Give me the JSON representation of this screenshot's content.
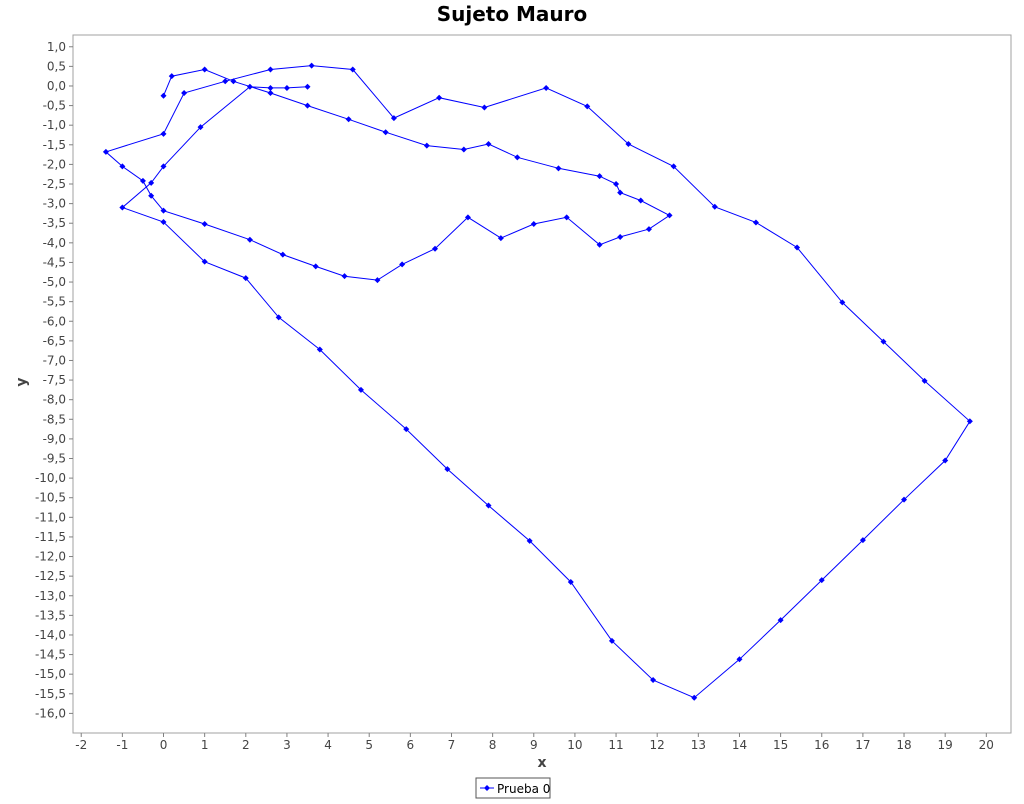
{
  "chart_data": {
    "type": "line",
    "title": "Sujeto Mauro",
    "xlabel": "x",
    "ylabel": "y",
    "xlim": [
      -2.2,
      20.6
    ],
    "ylim": [
      -16.5,
      1.3
    ],
    "x_ticks": [
      -2,
      -1,
      0,
      1,
      2,
      3,
      4,
      5,
      6,
      7,
      8,
      9,
      10,
      11,
      12,
      13,
      14,
      15,
      16,
      17,
      18,
      19,
      20
    ],
    "x_tick_labels": [
      "-2",
      "-1",
      "0",
      "1",
      "2",
      "3",
      "4",
      "5",
      "6",
      "7",
      "8",
      "9",
      "10",
      "11",
      "12",
      "13",
      "14",
      "15",
      "16",
      "17",
      "18",
      "19",
      "20"
    ],
    "y_ticks": [
      1.0,
      0.5,
      0.0,
      -0.5,
      -1.0,
      -1.5,
      -2.0,
      -2.5,
      -3.0,
      -3.5,
      -4.0,
      -4.5,
      -5.0,
      -5.5,
      -6.0,
      -6.5,
      -7.0,
      -7.5,
      -8.0,
      -8.5,
      -9.0,
      -9.5,
      -10.0,
      -10.5,
      -11.0,
      -11.5,
      -12.0,
      -12.5,
      -13.0,
      -13.5,
      -14.0,
      -14.5,
      -15.0,
      -15.5,
      -16.0
    ],
    "y_tick_labels": [
      "1,0",
      "0,5",
      "0,0",
      "-0,5",
      "-1,0",
      "-1,5",
      "-2,0",
      "-2,5",
      "-3,0",
      "-3,5",
      "-4,0",
      "-4,5",
      "-5,0",
      "-5,5",
      "-6,0",
      "-6,5",
      "-7,0",
      "-7,5",
      "-8,0",
      "-8,5",
      "-9,0",
      "-9,5",
      "-10,0",
      "-10,5",
      "-11,0",
      "-11,5",
      "-12,0",
      "-12,5",
      "-13,0",
      "-13,5",
      "-14,0",
      "-14,5",
      "-15,0",
      "-15,5",
      "-16,0"
    ],
    "grid": false,
    "legend_position": "bottom-center",
    "color": "#0000ff",
    "series": [
      {
        "name": "Prueba 0",
        "x": [
          0.0,
          0.2,
          1.0,
          1.7,
          2.6,
          3.5,
          4.5,
          5.4,
          6.4,
          7.3,
          7.9,
          8.6,
          9.6,
          10.6,
          11.0,
          11.1,
          11.6,
          12.3,
          11.8,
          11.1,
          10.6,
          9.8,
          9.0,
          8.2,
          7.4,
          6.6,
          5.8,
          5.2,
          4.4,
          3.7,
          2.9,
          2.1,
          1.0,
          0.0,
          -0.3,
          -0.5,
          -1.0,
          -1.4,
          0.0,
          0.5,
          1.5,
          2.6,
          3.6,
          4.6,
          5.6,
          6.7,
          7.8,
          9.3,
          10.3,
          11.3,
          12.4,
          13.4,
          14.4,
          15.4,
          16.5,
          17.5,
          18.5,
          19.6,
          19.0,
          18.0,
          17.0,
          16.0,
          15.0,
          14.0,
          12.9,
          11.9,
          10.9,
          9.9,
          8.9,
          7.9,
          6.9,
          5.9,
          4.8,
          3.8,
          2.8,
          2.0,
          1.0,
          0.0,
          -1.0,
          -0.3,
          0.0,
          0.9,
          2.1,
          2.6,
          3.0,
          3.5
        ],
        "y": [
          -0.25,
          0.25,
          0.42,
          0.12,
          -0.18,
          -0.5,
          -0.85,
          -1.18,
          -1.52,
          -1.62,
          -1.48,
          -1.82,
          -2.1,
          -2.3,
          -2.5,
          -2.72,
          -2.92,
          -3.3,
          -3.65,
          -3.85,
          -4.05,
          -3.35,
          -3.52,
          -3.88,
          -3.35,
          -4.15,
          -4.55,
          -4.95,
          -4.85,
          -4.6,
          -4.3,
          -3.92,
          -3.52,
          -3.18,
          -2.8,
          -2.42,
          -2.05,
          -1.68,
          -1.22,
          -0.18,
          0.12,
          0.42,
          0.52,
          0.42,
          -0.82,
          -0.3,
          -0.55,
          -0.05,
          -0.52,
          -1.48,
          -2.05,
          -3.08,
          -3.48,
          -4.12,
          -5.52,
          -6.52,
          -7.52,
          -8.55,
          -9.55,
          -10.55,
          -11.58,
          -12.6,
          -13.62,
          -14.62,
          -15.6,
          -15.15,
          -14.15,
          -12.65,
          -11.6,
          -10.7,
          -9.77,
          -8.75,
          -7.75,
          -6.72,
          -5.9,
          -4.9,
          -4.48,
          -3.47,
          -3.1,
          -2.47,
          -2.05,
          -1.05,
          -0.02,
          -0.05,
          -0.05,
          -0.02
        ]
      }
    ]
  }
}
